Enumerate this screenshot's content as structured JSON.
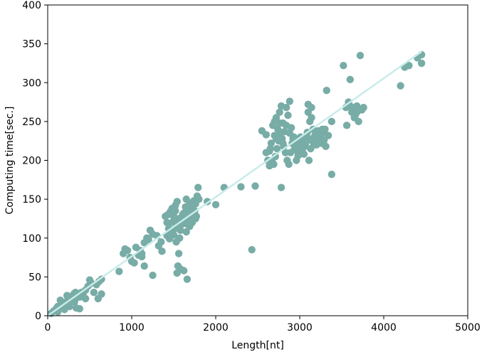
{
  "chart_data": {
    "type": "scatter",
    "title": "",
    "xlabel": "Length[nt]",
    "ylabel": "Computing time[sec.]",
    "xlim": [
      0,
      5000
    ],
    "ylim": [
      0,
      400
    ],
    "xticks": [
      0,
      1000,
      2000,
      3000,
      4000,
      5000
    ],
    "yticks": [
      0,
      50,
      100,
      150,
      200,
      250,
      300,
      350,
      400
    ],
    "grid": false,
    "legend": "none",
    "point_color": "#78aca6",
    "line_color": "#c8ecea",
    "points": [
      [
        40,
        3
      ],
      [
        70,
        6
      ],
      [
        100,
        9
      ],
      [
        120,
        12
      ],
      [
        150,
        11
      ],
      [
        180,
        15
      ],
      [
        200,
        13
      ],
      [
        220,
        18
      ],
      [
        250,
        20
      ],
      [
        280,
        22
      ],
      [
        300,
        25
      ],
      [
        320,
        18
      ],
      [
        350,
        28
      ],
      [
        380,
        24
      ],
      [
        400,
        30
      ],
      [
        420,
        27
      ],
      [
        450,
        33
      ],
      [
        480,
        38
      ],
      [
        500,
        46
      ],
      [
        520,
        42
      ],
      [
        550,
        30
      ],
      [
        580,
        40
      ],
      [
        610,
        44
      ],
      [
        640,
        47
      ],
      [
        120,
        5
      ],
      [
        200,
        8
      ],
      [
        260,
        12
      ],
      [
        340,
        10
      ],
      [
        380,
        9
      ],
      [
        450,
        22
      ],
      [
        600,
        22
      ],
      [
        640,
        28
      ],
      [
        150,
        20
      ],
      [
        230,
        26
      ],
      [
        310,
        28
      ],
      [
        330,
        30
      ],
      [
        850,
        57
      ],
      [
        900,
        80
      ],
      [
        920,
        86
      ],
      [
        950,
        84
      ],
      [
        980,
        75
      ],
      [
        1000,
        70
      ],
      [
        1030,
        68
      ],
      [
        1050,
        88
      ],
      [
        1080,
        78
      ],
      [
        1100,
        84
      ],
      [
        1120,
        76
      ],
      [
        1150,
        94
      ],
      [
        1180,
        100
      ],
      [
        1200,
        98
      ],
      [
        1220,
        110
      ],
      [
        1250,
        105
      ],
      [
        1120,
        80
      ],
      [
        1150,
        64
      ],
      [
        1250,
        52
      ],
      [
        1300,
        103
      ],
      [
        1320,
        90
      ],
      [
        1350,
        95
      ],
      [
        1360,
        83
      ],
      [
        1400,
        128
      ],
      [
        1420,
        120
      ],
      [
        1440,
        112
      ],
      [
        1460,
        134
      ],
      [
        1480,
        138
      ],
      [
        1500,
        104
      ],
      [
        1520,
        142
      ],
      [
        1540,
        147
      ],
      [
        1560,
        125
      ],
      [
        1580,
        110
      ],
      [
        1600,
        128
      ],
      [
        1620,
        132
      ],
      [
        1640,
        140
      ],
      [
        1660,
        118
      ],
      [
        1680,
        137
      ],
      [
        1700,
        130
      ],
      [
        1720,
        120
      ],
      [
        1740,
        148
      ],
      [
        1760,
        144
      ],
      [
        1780,
        154
      ],
      [
        1800,
        150
      ],
      [
        1790,
        165
      ],
      [
        1770,
        128
      ],
      [
        1750,
        135
      ],
      [
        1730,
        125
      ],
      [
        1710,
        142
      ],
      [
        1690,
        115
      ],
      [
        1670,
        125
      ],
      [
        1650,
        108
      ],
      [
        1630,
        122
      ],
      [
        1610,
        131
      ],
      [
        1590,
        125
      ],
      [
        1570,
        100
      ],
      [
        1550,
        118
      ],
      [
        1530,
        95
      ],
      [
        1510,
        112
      ],
      [
        1490,
        121
      ],
      [
        1470,
        108
      ],
      [
        1450,
        99
      ],
      [
        1430,
        130
      ],
      [
        1550,
        64
      ],
      [
        1580,
        60
      ],
      [
        1620,
        58
      ],
      [
        1660,
        47
      ],
      [
        1540,
        55
      ],
      [
        1560,
        80
      ],
      [
        1600,
        118
      ],
      [
        1500,
        128
      ],
      [
        1520,
        135
      ],
      [
        1700,
        145
      ],
      [
        1650,
        150
      ],
      [
        1680,
        142
      ],
      [
        1720,
        138
      ],
      [
        1740,
        130
      ],
      [
        1760,
        125
      ],
      [
        1480,
        104
      ],
      [
        1440,
        118
      ],
      [
        1420,
        103
      ],
      [
        1900,
        147
      ],
      [
        2000,
        143
      ],
      [
        2100,
        165
      ],
      [
        2300,
        166
      ],
      [
        2430,
        85
      ],
      [
        2470,
        167
      ],
      [
        2780,
        165
      ],
      [
        3380,
        182
      ],
      [
        2550,
        238
      ],
      [
        2600,
        210
      ],
      [
        2620,
        200
      ],
      [
        2640,
        193
      ],
      [
        2660,
        222
      ],
      [
        2680,
        245
      ],
      [
        2700,
        232
      ],
      [
        2720,
        255
      ],
      [
        2740,
        240
      ],
      [
        2760,
        262
      ],
      [
        2780,
        270
      ],
      [
        2800,
        248
      ],
      [
        2820,
        237
      ],
      [
        2840,
        268
      ],
      [
        2860,
        258
      ],
      [
        2880,
        276
      ],
      [
        2900,
        242
      ],
      [
        2920,
        228
      ],
      [
        2940,
        215
      ],
      [
        2960,
        200
      ],
      [
        2980,
        206
      ],
      [
        3000,
        212
      ],
      [
        3020,
        220
      ],
      [
        3040,
        225
      ],
      [
        3060,
        218
      ],
      [
        3080,
        230
      ],
      [
        3100,
        262
      ],
      [
        3120,
        250
      ],
      [
        3140,
        255
      ],
      [
        3160,
        240
      ],
      [
        3180,
        232
      ],
      [
        3200,
        226
      ],
      [
        3220,
        238
      ],
      [
        3240,
        230
      ],
      [
        3260,
        222
      ],
      [
        3280,
        236
      ],
      [
        3300,
        240
      ],
      [
        3320,
        290
      ],
      [
        3340,
        232
      ],
      [
        3380,
        250
      ],
      [
        3100,
        272
      ],
      [
        3140,
        268
      ],
      [
        2650,
        215
      ],
      [
        2670,
        200
      ],
      [
        2690,
        195
      ],
      [
        2710,
        205
      ],
      [
        2730,
        215
      ],
      [
        2750,
        225
      ],
      [
        2770,
        235
      ],
      [
        2790,
        228
      ],
      [
        2810,
        218
      ],
      [
        2830,
        210
      ],
      [
        2850,
        200
      ],
      [
        2870,
        195
      ],
      [
        2890,
        210
      ],
      [
        2910,
        222
      ],
      [
        2930,
        230
      ],
      [
        2950,
        218
      ],
      [
        2970,
        212
      ],
      [
        2990,
        224
      ],
      [
        3010,
        230
      ],
      [
        3030,
        214
      ],
      [
        3050,
        208
      ],
      [
        3070,
        222
      ],
      [
        3090,
        236
      ],
      [
        3110,
        228
      ],
      [
        3130,
        215
      ],
      [
        3150,
        225
      ],
      [
        3170,
        220
      ],
      [
        3190,
        230
      ],
      [
        3210,
        235
      ],
      [
        3230,
        228
      ],
      [
        3250,
        232
      ],
      [
        3270,
        240
      ],
      [
        3290,
        226
      ],
      [
        3310,
        218
      ],
      [
        3110,
        200
      ],
      [
        3200,
        220
      ],
      [
        2600,
        233
      ],
      [
        2640,
        212
      ],
      [
        2700,
        250
      ],
      [
        2720,
        228
      ],
      [
        2760,
        248
      ],
      [
        2800,
        222
      ],
      [
        2840,
        245
      ],
      [
        2880,
        235
      ],
      [
        3520,
        322
      ],
      [
        3560,
        245
      ],
      [
        3580,
        275
      ],
      [
        3600,
        270
      ],
      [
        3620,
        262
      ],
      [
        3640,
        266
      ],
      [
        3660,
        258
      ],
      [
        3680,
        262
      ],
      [
        3700,
        250
      ],
      [
        3720,
        335
      ],
      [
        3740,
        265
      ],
      [
        3760,
        268
      ],
      [
        3600,
        304
      ],
      [
        3650,
        255
      ],
      [
        3680,
        270
      ],
      [
        3550,
        268
      ],
      [
        4200,
        296
      ],
      [
        4250,
        320
      ],
      [
        4300,
        322
      ],
      [
        4400,
        332
      ],
      [
        4450,
        336
      ],
      [
        4450,
        325
      ]
    ],
    "fit_line": [
      [
        0,
        0
      ],
      [
        4450,
        340
      ]
    ]
  }
}
